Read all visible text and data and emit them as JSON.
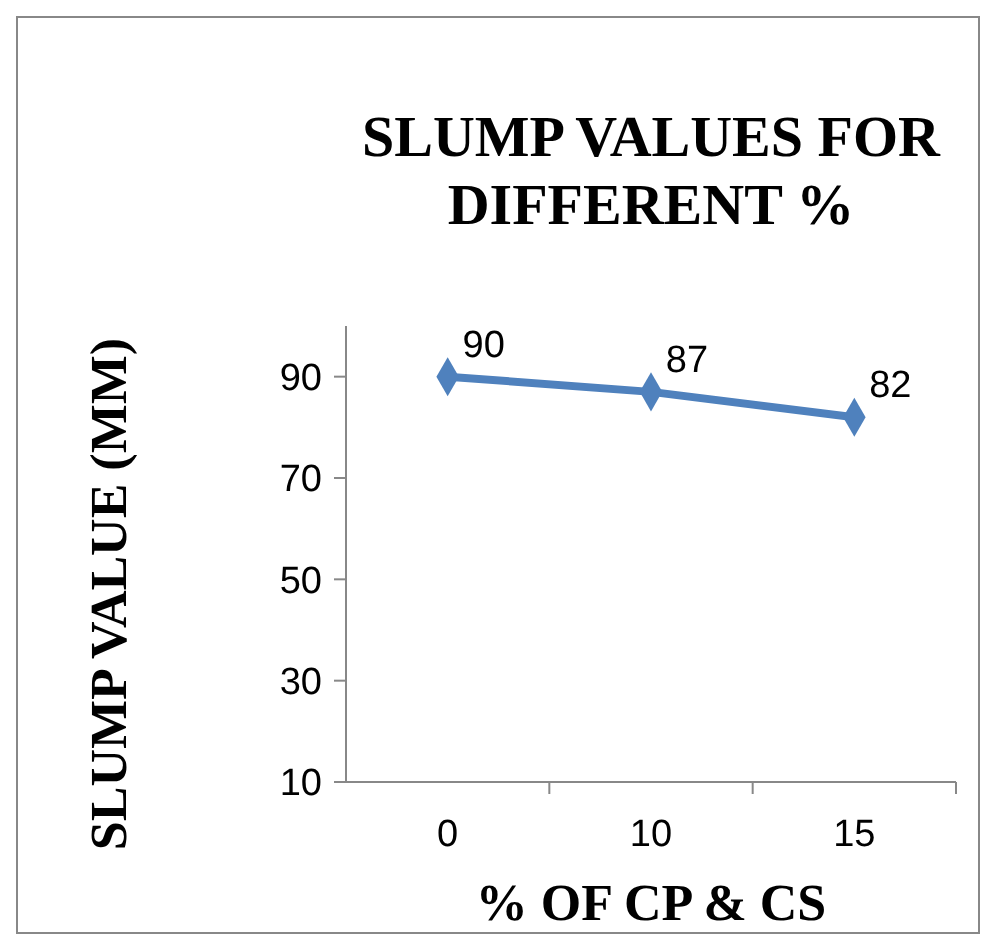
{
  "chart_data": {
    "type": "line",
    "title": "SLUMP VALUES FOR DIFFERENT %",
    "xlabel": "% OF CP & CS",
    "ylabel": "SLUMP VALUE (MM)",
    "categories": [
      "0",
      "10",
      "15"
    ],
    "series": [
      {
        "color": "#4f81bd",
        "values": [
          90,
          87,
          82
        ]
      }
    ],
    "ylim": [
      10,
      100
    ],
    "yticks": [
      10,
      30,
      50,
      70,
      90
    ],
    "marker": "diamond",
    "line_style": "solid",
    "data_labels": true
  }
}
